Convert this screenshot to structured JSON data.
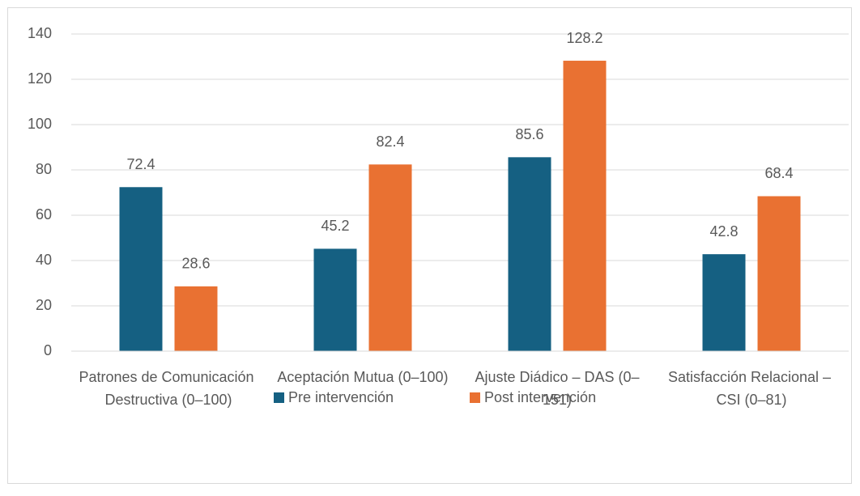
{
  "chart_data": {
    "type": "bar",
    "categories": [
      "Patrones de Comunicación Destructiva (0–100)",
      "Aceptación Mutua (0–100)",
      "Ajuste Diádico – DAS (0–151)",
      "Satisfacción Relacional – CSI (0–81)"
    ],
    "series": [
      {
        "name": "Pre intervención",
        "color": "#156082",
        "values": [
          72.4,
          45.2,
          85.6,
          42.8
        ]
      },
      {
        "name": "Post intervención",
        "color": "#E97132",
        "values": [
          28.6,
          82.4,
          128.2,
          68.4
        ]
      }
    ],
    "ylim": [
      0,
      140
    ],
    "yticks": [
      0,
      20,
      40,
      60,
      80,
      100,
      120,
      140
    ],
    "grid": true,
    "legend": "bottom"
  }
}
